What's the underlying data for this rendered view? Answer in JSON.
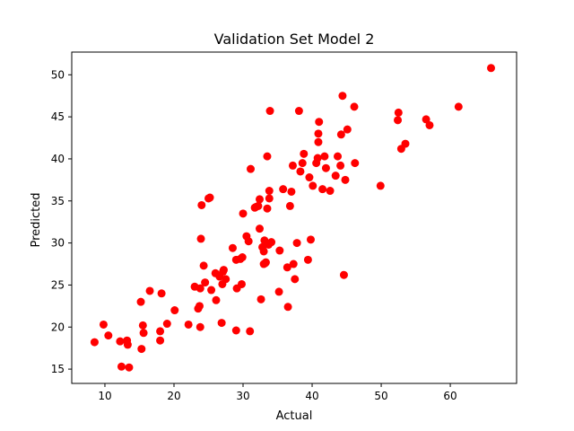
{
  "chart_data": {
    "type": "scatter",
    "title": "Validation Set Model 2",
    "xlabel": "Actual",
    "ylabel": "Predicted",
    "xlim": [
      5.2,
      69.6
    ],
    "ylim": [
      13.3,
      52.7
    ],
    "xticks": [
      10,
      20,
      30,
      40,
      50,
      60
    ],
    "yticks": [
      15,
      20,
      25,
      30,
      35,
      40,
      45,
      50
    ],
    "grid": false,
    "marker_color": "#ff0000",
    "points": [
      [
        8.5,
        18.2
      ],
      [
        9.8,
        20.3
      ],
      [
        10.5,
        19.0
      ],
      [
        12.2,
        18.3
      ],
      [
        12.4,
        15.3
      ],
      [
        13.2,
        18.4
      ],
      [
        13.3,
        17.9
      ],
      [
        13.5,
        15.2
      ],
      [
        15.2,
        23.0
      ],
      [
        15.3,
        17.4
      ],
      [
        15.5,
        20.2
      ],
      [
        15.6,
        19.3
      ],
      [
        16.5,
        24.3
      ],
      [
        18.0,
        19.5
      ],
      [
        18.0,
        18.4
      ],
      [
        18.2,
        24.0
      ],
      [
        19.0,
        20.4
      ],
      [
        20.1,
        22.0
      ],
      [
        22.1,
        20.3
      ],
      [
        23.0,
        24.8
      ],
      [
        23.5,
        22.2
      ],
      [
        23.7,
        22.5
      ],
      [
        23.8,
        20.0
      ],
      [
        23.8,
        24.6
      ],
      [
        23.9,
        30.5
      ],
      [
        24.0,
        34.5
      ],
      [
        24.3,
        27.3
      ],
      [
        24.5,
        25.3
      ],
      [
        25.0,
        35.3
      ],
      [
        25.2,
        35.4
      ],
      [
        25.4,
        24.4
      ],
      [
        26.0,
        26.4
      ],
      [
        26.1,
        23.2
      ],
      [
        26.6,
        26.0
      ],
      [
        26.9,
        20.5
      ],
      [
        27.0,
        25.1
      ],
      [
        27.1,
        26.6
      ],
      [
        27.2,
        26.8
      ],
      [
        27.5,
        25.7
      ],
      [
        28.5,
        29.4
      ],
      [
        29.0,
        28.0
      ],
      [
        29.0,
        19.6
      ],
      [
        29.1,
        24.6
      ],
      [
        29.6,
        28.1
      ],
      [
        29.8,
        25.1
      ],
      [
        29.9,
        28.3
      ],
      [
        30.0,
        33.5
      ],
      [
        30.5,
        30.8
      ],
      [
        30.8,
        30.2
      ],
      [
        31.0,
        19.5
      ],
      [
        31.1,
        38.8
      ],
      [
        31.7,
        34.2
      ],
      [
        31.9,
        34.3
      ],
      [
        32.2,
        34.4
      ],
      [
        32.4,
        31.7
      ],
      [
        32.4,
        35.2
      ],
      [
        32.6,
        23.3
      ],
      [
        32.8,
        29.5
      ],
      [
        33.0,
        27.5
      ],
      [
        33.0,
        29.0
      ],
      [
        33.1,
        30.3
      ],
      [
        33.2,
        27.6
      ],
      [
        33.3,
        27.7
      ],
      [
        33.5,
        34.1
      ],
      [
        33.5,
        40.3
      ],
      [
        33.7,
        29.8
      ],
      [
        33.8,
        36.2
      ],
      [
        33.8,
        35.3
      ],
      [
        33.9,
        45.7
      ],
      [
        34.1,
        30.1
      ],
      [
        35.2,
        24.2
      ],
      [
        35.3,
        29.1
      ],
      [
        35.8,
        36.4
      ],
      [
        36.4,
        27.1
      ],
      [
        36.5,
        22.4
      ],
      [
        36.8,
        34.4
      ],
      [
        37.0,
        36.1
      ],
      [
        37.2,
        39.2
      ],
      [
        37.3,
        27.5
      ],
      [
        37.5,
        25.7
      ],
      [
        37.8,
        30.0
      ],
      [
        38.1,
        45.7
      ],
      [
        38.3,
        38.5
      ],
      [
        38.6,
        39.5
      ],
      [
        38.8,
        40.6
      ],
      [
        39.4,
        28.0
      ],
      [
        39.6,
        37.8
      ],
      [
        39.8,
        30.4
      ],
      [
        40.1,
        36.8
      ],
      [
        40.6,
        39.5
      ],
      [
        40.8,
        40.1
      ],
      [
        40.9,
        42.0
      ],
      [
        40.9,
        43.0
      ],
      [
        41.0,
        44.4
      ],
      [
        41.5,
        36.4
      ],
      [
        41.8,
        40.3
      ],
      [
        42.0,
        38.9
      ],
      [
        42.6,
        36.2
      ],
      [
        43.4,
        38.0
      ],
      [
        43.7,
        40.3
      ],
      [
        44.1,
        39.2
      ],
      [
        44.2,
        42.9
      ],
      [
        44.4,
        47.5
      ],
      [
        44.6,
        26.2
      ],
      [
        44.8,
        37.5
      ],
      [
        45.1,
        43.5
      ],
      [
        46.1,
        46.2
      ],
      [
        46.2,
        39.5
      ],
      [
        49.9,
        36.8
      ],
      [
        52.4,
        44.6
      ],
      [
        52.5,
        45.5
      ],
      [
        52.9,
        41.2
      ],
      [
        53.5,
        41.8
      ],
      [
        56.5,
        44.7
      ],
      [
        57.0,
        44.0
      ],
      [
        61.2,
        46.2
      ],
      [
        65.9,
        50.8
      ]
    ]
  }
}
